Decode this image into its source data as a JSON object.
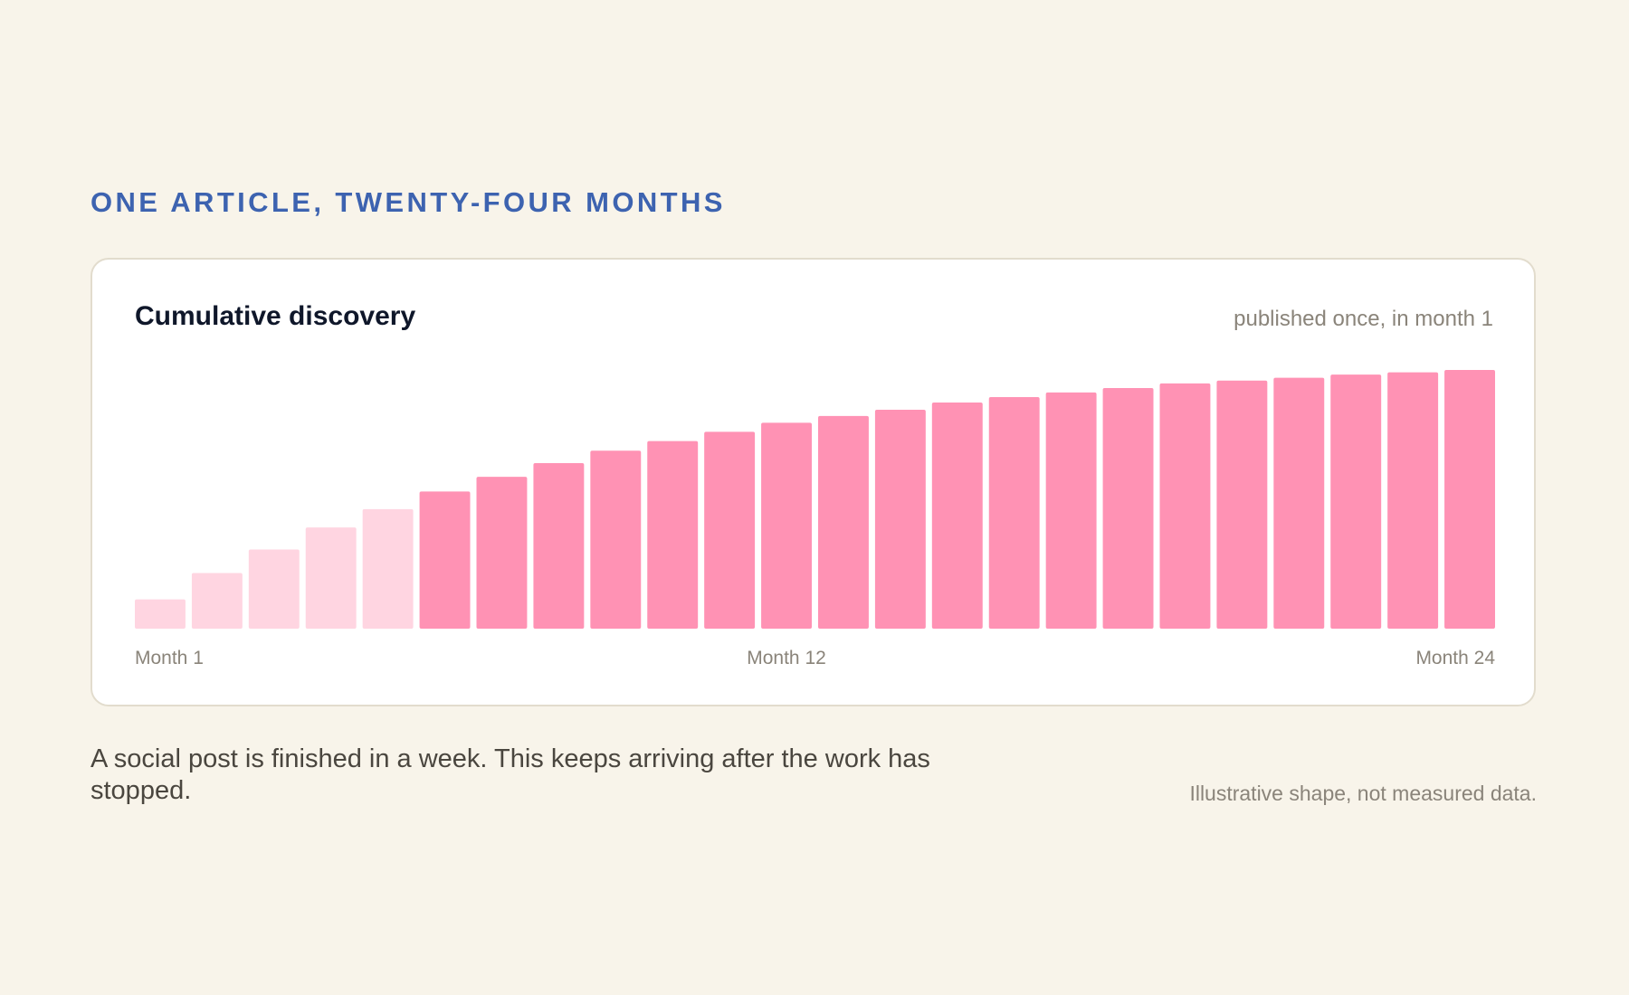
{
  "eyebrow": "ONE ARTICLE, TWENTY-FOUR MONTHS",
  "card": {
    "title": "Cumulative discovery",
    "subtitle": "published once, in month 1"
  },
  "caption": "A social post is finished in a week. This keeps arriving after the work has stopped.",
  "footnote": "Illustrative shape, not measured data.",
  "colors": {
    "bar_light": "#ffd5e1",
    "bar_strong": "#ff92b4",
    "eyebrow": "#3d63b0",
    "background": "#f8f4ea"
  },
  "chart_data": {
    "type": "bar",
    "title": "Cumulative discovery",
    "subtitle": "published once, in month 1",
    "categories": [
      "Month 1",
      "Month 2",
      "Month 3",
      "Month 4",
      "Month 5",
      "Month 6",
      "Month 7",
      "Month 8",
      "Month 9",
      "Month 10",
      "Month 11",
      "Month 12",
      "Month 13",
      "Month 14",
      "Month 15",
      "Month 16",
      "Month 17",
      "Month 18",
      "Month 19",
      "Month 20",
      "Month 21",
      "Month 22",
      "Month 23",
      "Month 24"
    ],
    "x_tick_labels": [
      {
        "index": 0,
        "label": "Month 1"
      },
      {
        "index": 11,
        "label": "Month 12"
      },
      {
        "index": 23,
        "label": "Month 24"
      }
    ],
    "values": [
      11.3,
      21.5,
      30.6,
      39.1,
      46.2,
      53.0,
      58.7,
      64.0,
      68.8,
      72.5,
      76.1,
      79.6,
      82.2,
      84.6,
      87.4,
      89.5,
      91.3,
      93.0,
      94.8,
      95.9,
      97.0,
      98.2,
      99.1,
      100
    ],
    "light_months": 5,
    "ylim": [
      0,
      100
    ],
    "grid": false,
    "legend": "none",
    "y_axis_visible": false
  }
}
